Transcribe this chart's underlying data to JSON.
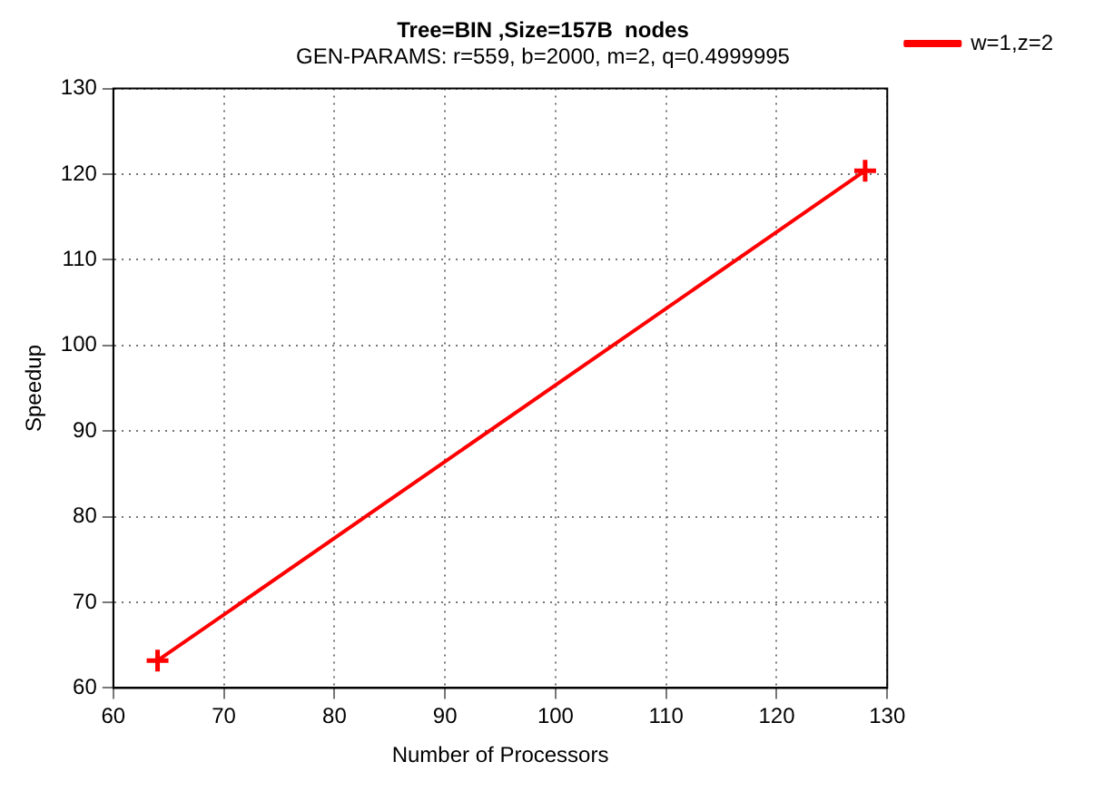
{
  "chart_data": {
    "type": "line",
    "title": "Tree=BIN ,Size=157B  nodes",
    "subtitle": "GEN-PARAMS: r=559, b=2000, m=2, q=0.4999995",
    "xlabel": "Number of Processors",
    "ylabel": "Speedup",
    "x": [
      64,
      128
    ],
    "series": [
      {
        "name": "w=1,z=2",
        "color": "#ff0000",
        "values": [
          63.2,
          120.4
        ]
      }
    ],
    "xlim": [
      60,
      130
    ],
    "xticks": [
      60,
      70,
      80,
      90,
      100,
      110,
      120,
      130
    ],
    "ylim": [
      60,
      130
    ],
    "yticks": [
      60,
      70,
      80,
      90,
      100,
      110,
      120,
      130
    ],
    "grid": true,
    "legend": "top right",
    "marker": "cross",
    "line_style": "solid"
  }
}
